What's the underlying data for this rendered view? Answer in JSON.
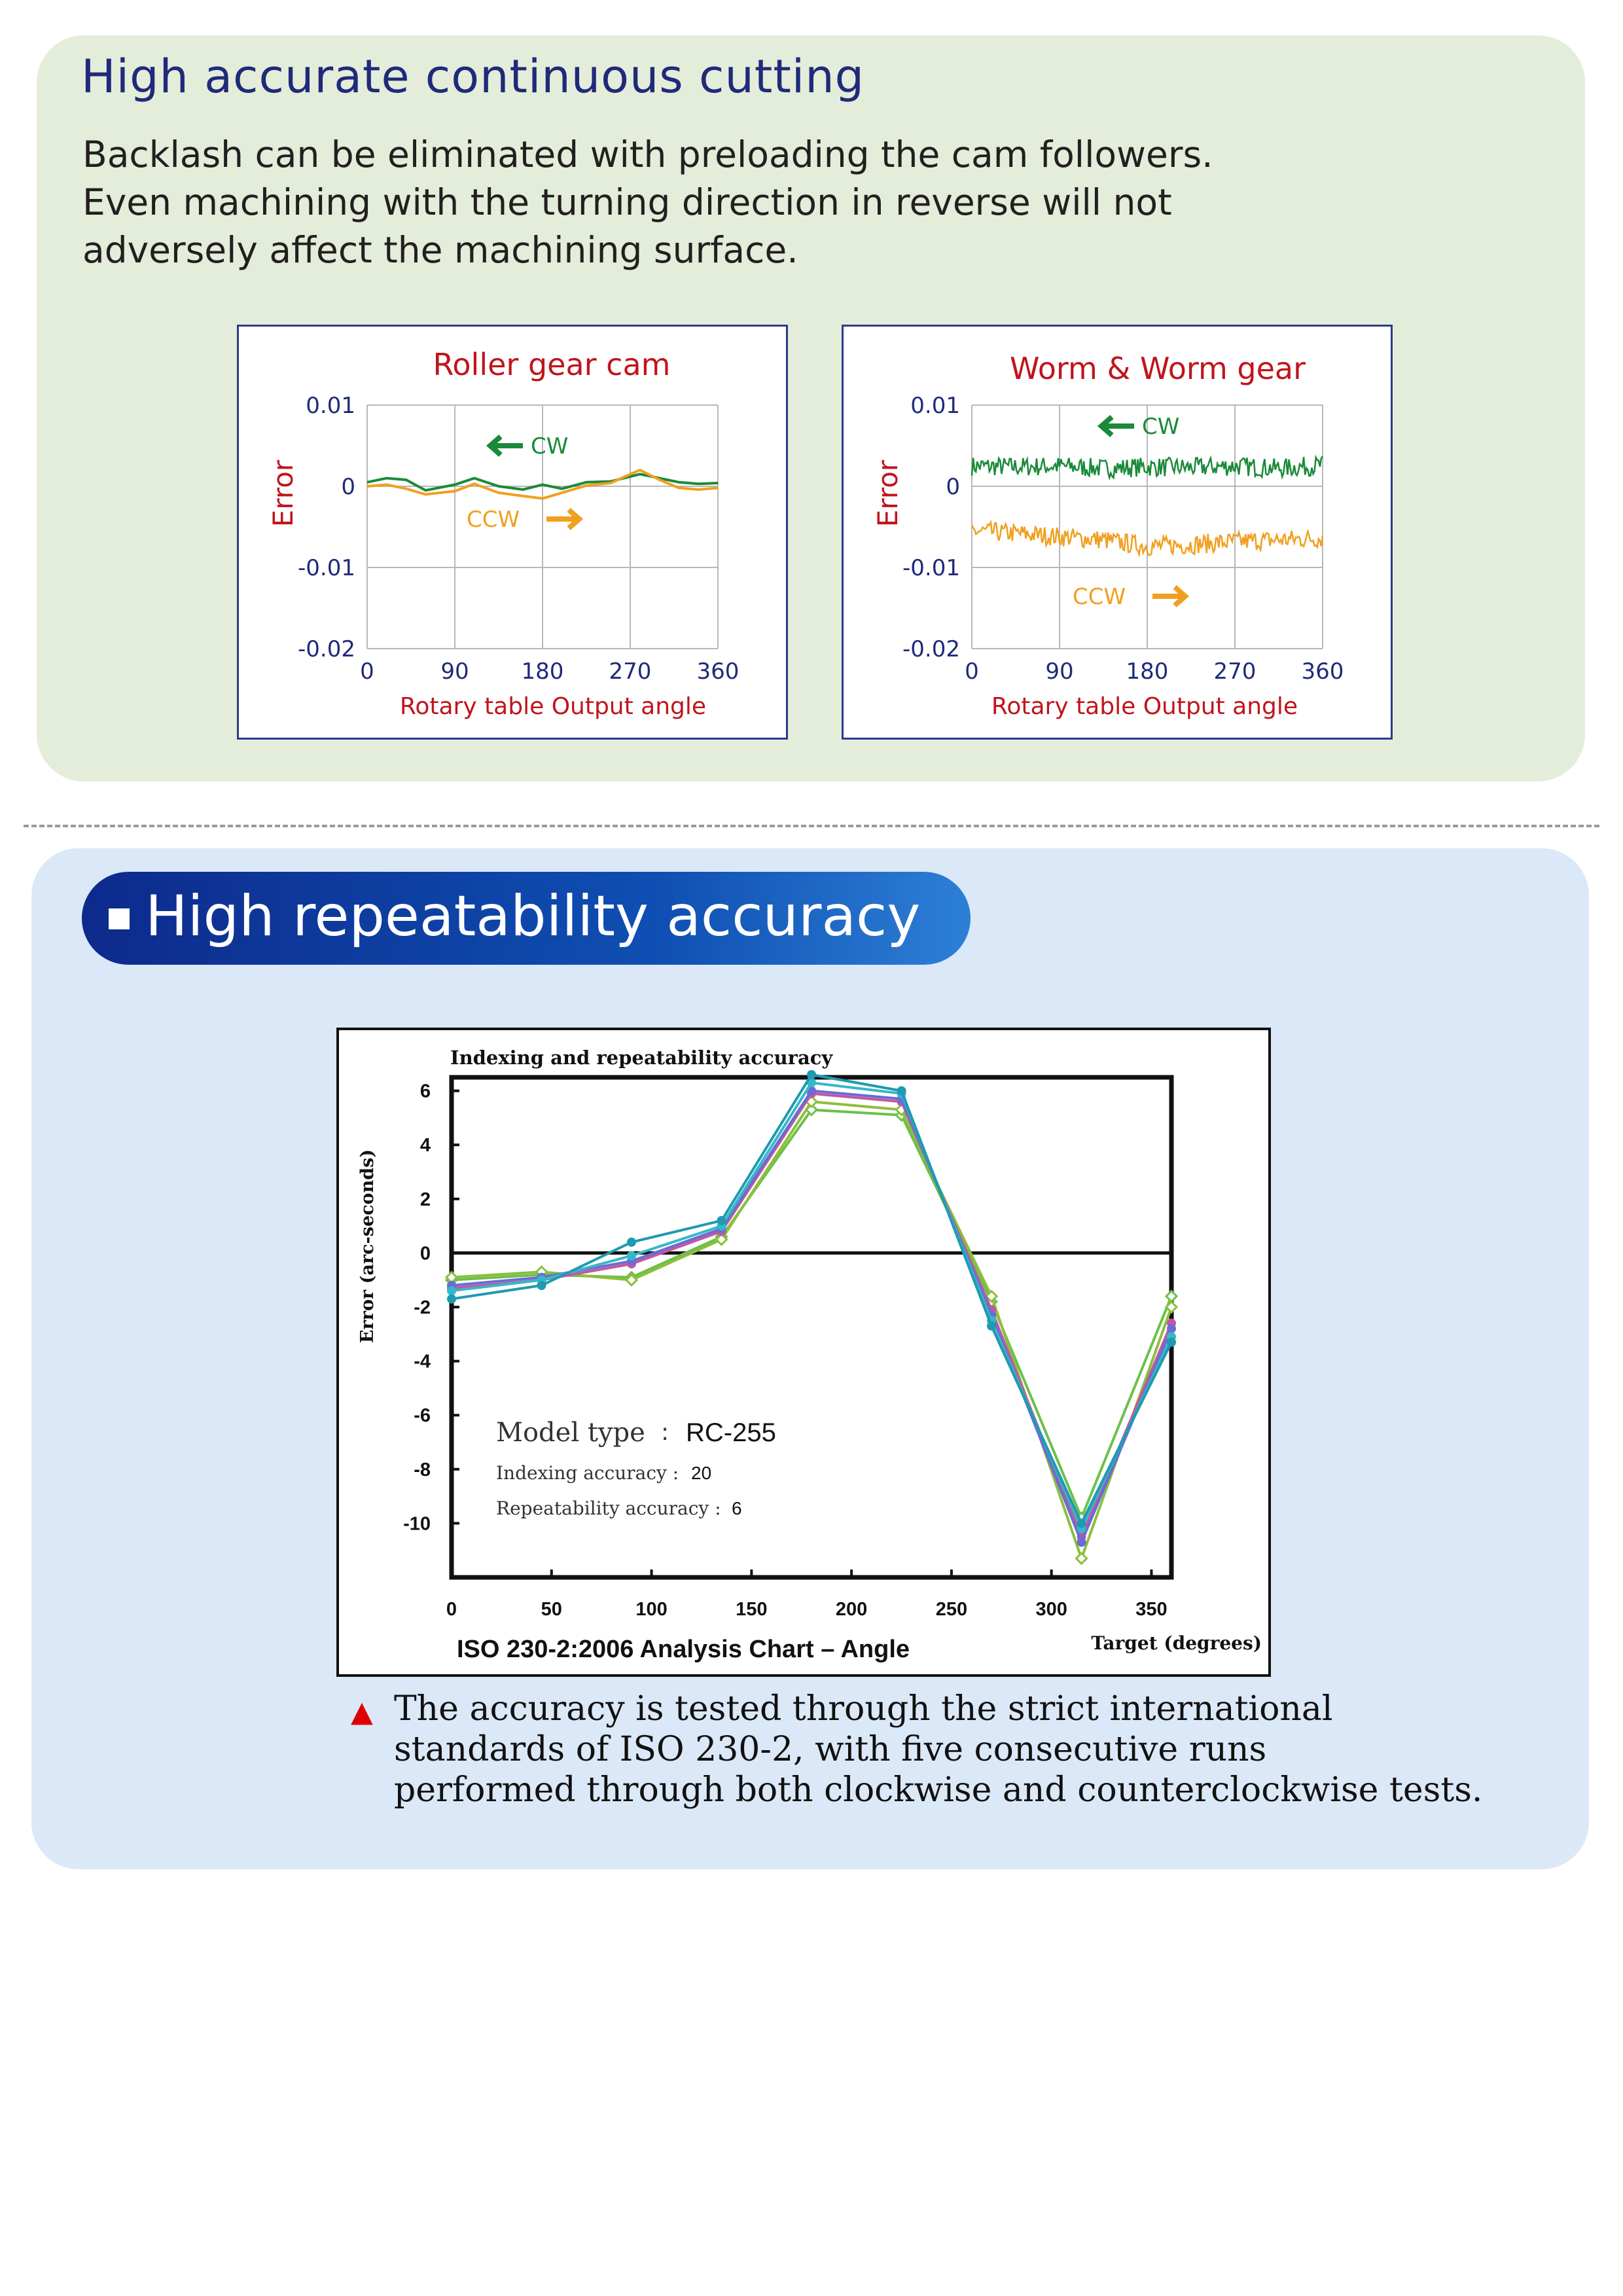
{
  "top_section": {
    "title": "High accurate continuous cutting",
    "description_lines": [
      "Backlash can be eliminated with preloading the cam followers.",
      "Even machining with the turning direction in reverse will not",
      "adversely affect the machining surface."
    ]
  },
  "bottom_section": {
    "title": "High repeatability accuracy",
    "note_icon": "red-triangle-icon",
    "note_lines": [
      "The accuracy is tested through the strict international",
      "standards of  ISO 230-2, with five consecutive runs",
      "performed through both clockwise and counterclockwise tests."
    ]
  },
  "colors": {
    "title_blue": "#1f2a7a",
    "chart_title_red": "#c0141c",
    "cw_green": "#1a8a3a",
    "ccw_orange": "#f0a020",
    "axis_blue": "#1f2a7a",
    "top_panel_bg": "#e4edda",
    "bottom_panel_bg": "#dbe8f7"
  },
  "chart_data": [
    {
      "type": "line",
      "title": "Roller gear cam",
      "ylabel": "Error",
      "xlabel": "Rotary table Output angle",
      "x_ticks": [
        "0",
        "90",
        "180",
        "270",
        "360"
      ],
      "y_ticks": [
        "0.01",
        "0",
        "-0.01",
        "-0.02"
      ],
      "xlim": [
        0,
        360
      ],
      "ylim": [
        -0.02,
        0.01
      ],
      "grid": true,
      "annotations": [
        {
          "label": "CW",
          "arrow": "left"
        },
        {
          "label": "CCW",
          "arrow": "right"
        }
      ],
      "series": [
        {
          "name": "CW",
          "color": "#1a8a3a",
          "x": [
            0,
            20,
            40,
            60,
            90,
            110,
            135,
            160,
            180,
            200,
            225,
            250,
            270,
            280,
            300,
            320,
            340,
            360
          ],
          "y": [
            0.0005,
            0.001,
            0.0008,
            -0.0005,
            0.0002,
            0.001,
            0.0,
            -0.0004,
            0.0002,
            -0.0003,
            0.0005,
            0.0006,
            0.0012,
            0.0015,
            0.001,
            0.0005,
            0.0003,
            0.0004
          ]
        },
        {
          "name": "CCW",
          "color": "#f0a020",
          "x": [
            0,
            20,
            40,
            60,
            90,
            110,
            135,
            160,
            180,
            200,
            225,
            250,
            270,
            280,
            300,
            320,
            340,
            360
          ],
          "y": [
            0.0,
            0.0002,
            -0.0003,
            -0.001,
            -0.0006,
            0.0003,
            -0.0008,
            -0.0012,
            -0.0015,
            -0.0008,
            0.0001,
            0.0004,
            0.0015,
            0.002,
            0.0008,
            -0.0002,
            -0.0004,
            -0.0002
          ]
        }
      ]
    },
    {
      "type": "line",
      "title": "Worm & Worm gear",
      "ylabel": "Error",
      "xlabel": "Rotary table Output angle",
      "x_ticks": [
        "0",
        "90",
        "180",
        "270",
        "360"
      ],
      "y_ticks": [
        "0.01",
        "0",
        "-0.01",
        "-0.02"
      ],
      "xlim": [
        0,
        360
      ],
      "ylim": [
        -0.02,
        0.01
      ],
      "grid": true,
      "annotations": [
        {
          "label": "CW",
          "arrow": "left"
        },
        {
          "label": "CCW",
          "arrow": "right"
        }
      ],
      "series": [
        {
          "name": "CW",
          "color": "#1a8a3a",
          "x": [
            0,
            45,
            90,
            135,
            180,
            225,
            270,
            315,
            360
          ],
          "y": [
            0.0025,
            0.0024,
            0.0025,
            0.0022,
            0.0024,
            0.0023,
            0.0025,
            0.0022,
            0.0026
          ],
          "noise": 0.0012
        },
        {
          "name": "CCW",
          "color": "#f0a020",
          "x": [
            0,
            45,
            90,
            135,
            180,
            225,
            270,
            315,
            360
          ],
          "y": [
            -0.0055,
            -0.0058,
            -0.0062,
            -0.0066,
            -0.0074,
            -0.0072,
            -0.0068,
            -0.0066,
            -0.0064
          ],
          "noise": 0.0012
        }
      ]
    },
    {
      "type": "line",
      "title": "Indexing and repeatability accuracy",
      "ylabel": "Error (arc-seconds)",
      "xlabel": "Target (degrees)",
      "footer": "ISO 230-2:2006 Analysis Chart – Angle",
      "x_ticks": [
        "0",
        "50",
        "100",
        "150",
        "200",
        "250",
        "300",
        "350"
      ],
      "y_ticks": [
        "6",
        "4",
        "2",
        "0",
        "-2",
        "-4",
        "-6",
        "-8",
        "-10"
      ],
      "xlim": [
        0,
        360
      ],
      "ylim": [
        -12,
        6.5
      ],
      "grid": false,
      "inset": {
        "model_label": "Model type",
        "model_value": "RC-255",
        "indexing_label": "Indexing accuracy :",
        "indexing_value": "20",
        "repeatability_label": "Repeatability accuracy :",
        "repeatability_value": "6"
      },
      "x": [
        0,
        45,
        90,
        135,
        180,
        225,
        270,
        315,
        360
      ],
      "series": [
        {
          "color": "#6cc04a",
          "marker": "diamond",
          "values": [
            -1.0,
            -0.8,
            -0.9,
            0.6,
            5.3,
            5.1,
            -1.8,
            -9.8,
            -1.6
          ]
        },
        {
          "color": "#8bbf3c",
          "marker": "diamond",
          "values": [
            -0.9,
            -0.7,
            -1.0,
            0.5,
            5.6,
            5.3,
            -1.6,
            -11.3,
            -2.0
          ]
        },
        {
          "color": "#c2589e",
          "marker": "circle",
          "values": [
            -1.3,
            -1.0,
            -0.4,
            0.8,
            5.9,
            5.6,
            -2.1,
            -10.5,
            -2.6
          ]
        },
        {
          "color": "#6a6bd6",
          "marker": "circle",
          "values": [
            -1.2,
            -0.9,
            -0.3,
            0.9,
            6.0,
            5.7,
            -2.3,
            -10.7,
            -2.8
          ]
        },
        {
          "color": "#35b8c8",
          "marker": "circle",
          "values": [
            -1.4,
            -1.0,
            -0.1,
            1.0,
            6.3,
            5.9,
            -2.5,
            -10.2,
            -3.1
          ]
        },
        {
          "color": "#1f9ab0",
          "marker": "circle",
          "values": [
            -1.7,
            -1.2,
            0.4,
            1.2,
            6.6,
            6.0,
            -2.7,
            -10.0,
            -3.3
          ]
        }
      ]
    }
  ]
}
